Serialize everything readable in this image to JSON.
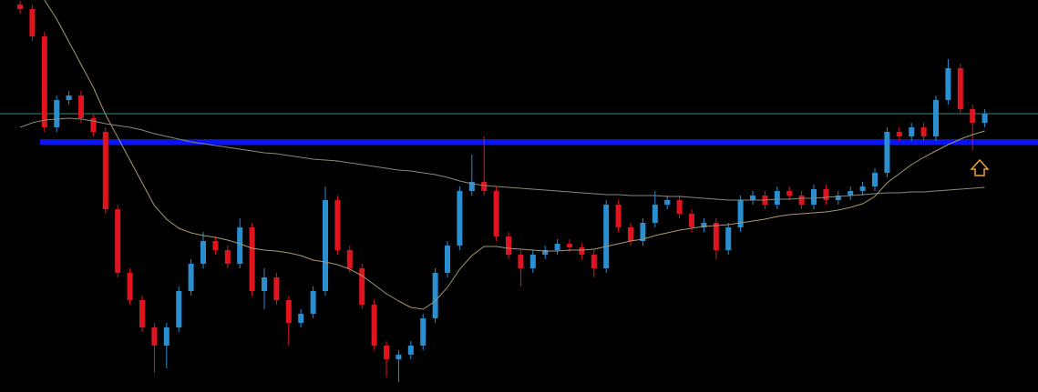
{
  "chart_data": {
    "type": "candlestick",
    "ylim": [
      0,
      431
    ],
    "up_color": "#2a8fd0",
    "down_color": "#e0141e",
    "open": [
      426,
      421,
      391,
      291,
      321,
      326,
      301,
      286,
      201,
      131,
      101,
      71,
      51,
      71,
      111,
      141,
      166,
      156,
      141,
      181,
      111,
      126,
      101,
      76,
      86,
      111,
      211,
      156,
      136,
      96,
      51,
      36,
      41,
      51,
      81,
      131,
      161,
      221,
      231,
      221,
      171,
      151,
      136,
      151,
      156,
      163,
      159,
      151,
      136,
      206,
      181,
      166,
      186,
      206,
      211,
      196,
      181,
      186,
      156,
      181,
      211,
      216,
      206,
      221,
      216,
      206,
      223,
      211,
      216,
      221,
      226,
      241,
      286,
      281,
      291,
      281,
      321,
      356,
      311,
      296
    ],
    "high": [
      430,
      426,
      396,
      326,
      331,
      331,
      306,
      291,
      206,
      136,
      106,
      76,
      76,
      116,
      146,
      176,
      171,
      161,
      191,
      186,
      136,
      131,
      106,
      91,
      116,
      226,
      216,
      161,
      141,
      101,
      56,
      46,
      56,
      86,
      136,
      166,
      226,
      261,
      281,
      226,
      176,
      156,
      156,
      161,
      168,
      168,
      164,
      156,
      211,
      211,
      186,
      191,
      221,
      216,
      216,
      201,
      191,
      191,
      186,
      216,
      221,
      221,
      226,
      226,
      221,
      228,
      228,
      221,
      226,
      231,
      246,
      291,
      291,
      296,
      296,
      326,
      366,
      361,
      316,
      311
    ],
    "low": [
      416,
      386,
      286,
      286,
      316,
      296,
      281,
      196,
      126,
      96,
      66,
      21,
      26,
      66,
      106,
      136,
      151,
      136,
      136,
      106,
      91,
      96,
      51,
      71,
      81,
      106,
      151,
      131,
      91,
      46,
      16,
      11,
      36,
      46,
      76,
      126,
      156,
      216,
      216,
      166,
      146,
      116,
      131,
      146,
      151,
      154,
      146,
      126,
      131,
      176,
      161,
      161,
      181,
      201,
      191,
      176,
      176,
      146,
      151,
      176,
      206,
      201,
      201,
      211,
      201,
      201,
      206,
      206,
      211,
      216,
      221,
      236,
      276,
      276,
      276,
      276,
      316,
      306,
      266,
      291
    ],
    "close": [
      421,
      391,
      291,
      321,
      326,
      301,
      286,
      201,
      131,
      101,
      71,
      51,
      71,
      111,
      141,
      166,
      156,
      141,
      181,
      111,
      126,
      101,
      76,
      86,
      111,
      211,
      156,
      136,
      96,
      51,
      36,
      41,
      51,
      81,
      131,
      161,
      221,
      231,
      221,
      171,
      151,
      136,
      151,
      156,
      163,
      159,
      151,
      136,
      206,
      181,
      166,
      186,
      206,
      211,
      196,
      181,
      186,
      156,
      181,
      211,
      216,
      206,
      221,
      216,
      206,
      223,
      211,
      216,
      221,
      226,
      241,
      286,
      281,
      291,
      281,
      321,
      356,
      311,
      296,
      306
    ],
    "lines": [
      {
        "color": "#8a8a7a",
        "values": [
          291,
          296,
          299,
          300,
          301,
          300,
          298,
          295,
          293,
          291,
          288,
          284,
          281,
          278,
          275,
          273,
          271,
          269,
          267,
          265,
          263,
          262,
          260,
          258,
          256,
          255,
          254,
          252,
          250,
          248,
          246,
          244,
          243,
          241,
          239,
          236,
          232,
          229,
          227,
          226,
          225,
          224,
          223,
          222,
          221,
          220,
          219,
          218,
          217,
          217,
          216,
          216,
          216,
          215,
          215,
          214,
          213,
          212,
          211,
          211,
          211,
          211,
          212,
          212,
          213,
          213,
          214,
          215,
          216,
          217,
          218,
          219,
          219,
          220,
          220,
          221,
          222,
          223,
          224,
          225
        ]
      },
      {
        "color": "#a89870",
        "values": [
          null,
          null,
          431,
          410,
          385,
          360,
          335,
          305,
          280,
          255,
          230,
          205,
          190,
          180,
          175,
          172,
          170,
          167,
          163,
          158,
          156,
          155,
          153,
          150,
          145,
          143,
          140,
          135,
          128,
          118,
          108,
          100,
          93,
          91,
          100,
          115,
          135,
          150,
          160,
          160,
          158,
          157,
          156,
          155,
          155,
          156,
          156,
          157,
          160,
          163,
          166,
          168,
          172,
          175,
          178,
          180,
          182,
          183,
          184,
          186,
          188,
          190,
          193,
          195,
          196,
          197,
          198,
          200,
          203,
          207,
          215,
          230,
          240,
          250,
          258,
          265,
          272,
          278,
          283,
          287
        ]
      }
    ],
    "hlines": [
      {
        "value": 306,
        "color": "#2e8a80"
      },
      {
        "value": 275,
        "color": "#0a14f0"
      }
    ]
  }
}
